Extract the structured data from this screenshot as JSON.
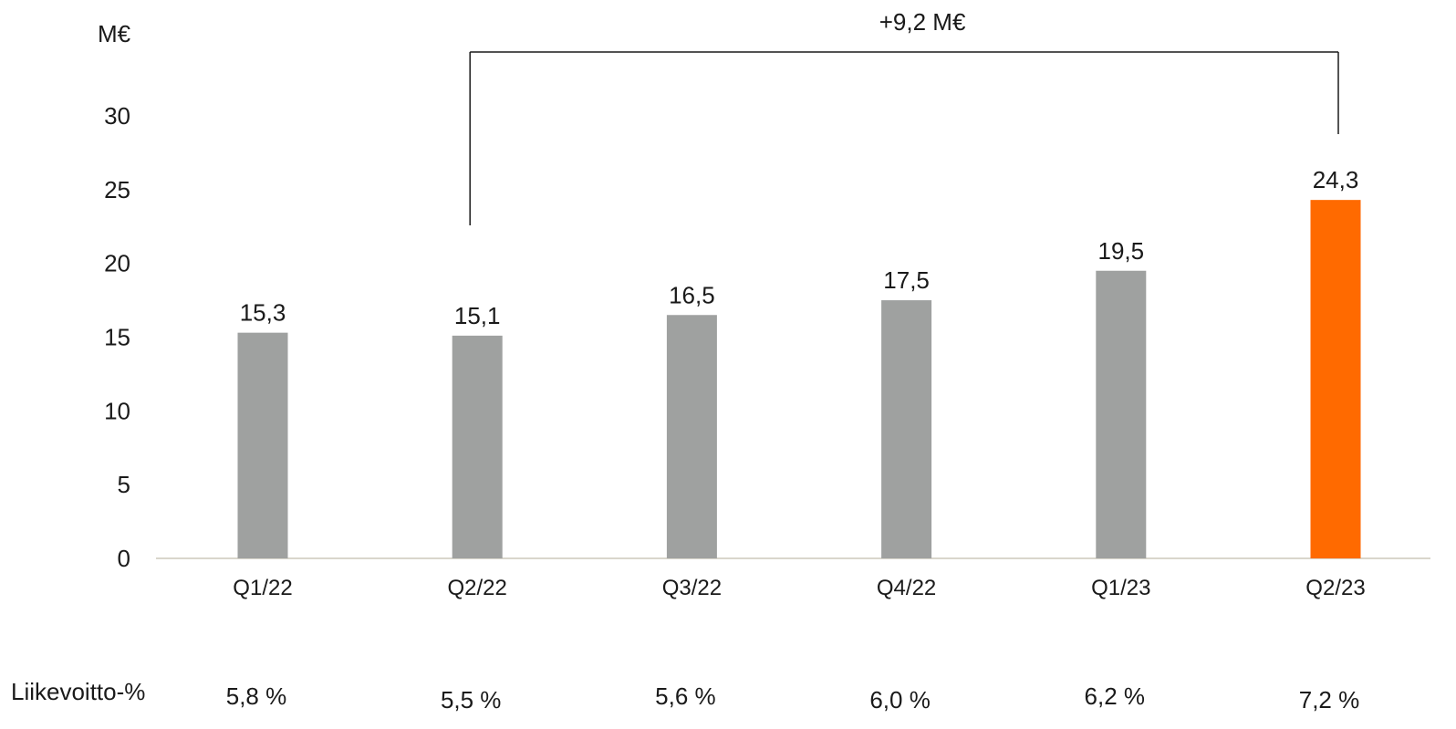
{
  "chart_data": {
    "type": "bar",
    "unit_label": "M€",
    "categories": [
      "Q1/22",
      "Q2/22",
      "Q3/22",
      "Q4/22",
      "Q1/23",
      "Q2/23"
    ],
    "values": [
      15.3,
      15.1,
      16.5,
      17.5,
      19.5,
      24.3
    ],
    "value_labels": [
      "15,3",
      "15,1",
      "16,5",
      "17,5",
      "19,5",
      "24,3"
    ],
    "y_ticks": [
      0,
      5,
      10,
      15,
      20,
      25,
      30
    ],
    "y_tick_labels": [
      "0",
      "5",
      "10",
      "15",
      "20",
      "25",
      "30"
    ],
    "ylim": [
      0,
      33
    ],
    "grid": false,
    "bar_colors": [
      "#9fa1a0",
      "#9fa1a0",
      "#9fa1a0",
      "#9fa1a0",
      "#9fa1a0",
      "#ff6a00"
    ],
    "annotation": {
      "text": "+9,2 M€",
      "from_category": "Q2/22",
      "to_category": "Q2/23"
    },
    "margin_row": {
      "label": "Liikevoitto-%",
      "values": [
        "5,8 %",
        "5,5 %",
        "5,6 %",
        "6,0 %",
        "6,2 %",
        "7,2 %"
      ]
    }
  }
}
